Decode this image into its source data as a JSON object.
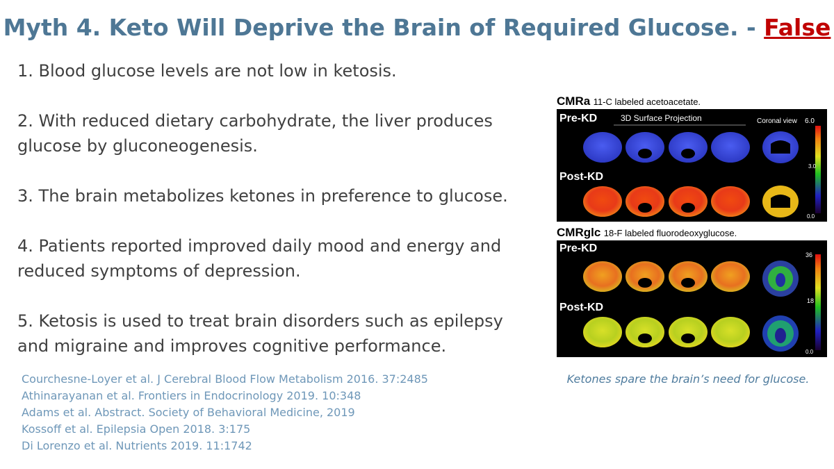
{
  "title": {
    "text": "Myth 4. Keto Will Deprive the Brain of Required Glucose. - ",
    "emphasis": "False",
    "emphasis_color": "#c00000",
    "color": "#4e7795"
  },
  "points": [
    "1. Blood glucose levels are not low in ketosis.",
    "2. With reduced dietary carbohydrate, the liver produces glucose by gluconeogenesis.",
    "3. The brain metabolizes ketones in preference to glucose.",
    "4. Patients reported improved daily mood and energy and reduced symptoms of depression.",
    "5. Ketosis is used to treat brain disorders such as epilepsy and migraine and improves cognitive performance."
  ],
  "references": [
    "Courchesne-Loyer et al. J Cerebral Blood Flow Metabolism 2016. 37:2485",
    "Athinarayanan et al. Frontiers in Endocrinology 2019. 10:348",
    "Adams et al. Abstract. Society of Behavioral Medicine, 2019",
    "Kossoff et al. Epilepsia Open 2018. 3:175",
    "Di Lorenzo et al. Nutrients 2019. 11:1742"
  ],
  "figure": {
    "top": {
      "label": "CMRa",
      "sublabel": "11-C labeled acetoacetate.",
      "row1": "Pre-KD",
      "row2": "Post-KD",
      "header": "3D Surface Projection",
      "coronal": "Coronal view",
      "scale_max": "6.0",
      "scale_mid": "3.0",
      "scale_min": "0.0"
    },
    "bottom": {
      "label": "CMRglc",
      "sublabel": "18-F labeled fluorodeoxyglucose.",
      "row1": "Pre-KD",
      "row2": "Post-KD",
      "scale_max": "36",
      "scale_mid": "18",
      "scale_min": "0.0"
    },
    "caption": "Ketones spare the brain’s need for glucose."
  }
}
